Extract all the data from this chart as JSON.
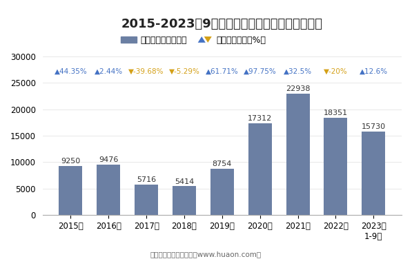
{
  "title": "2015-2023年9月大连商品交易所豆油期货成交量",
  "categories": [
    "2015年",
    "2016年",
    "2017年",
    "2018年",
    "2019年",
    "2020年",
    "2021年",
    "2022年",
    "2023年\n1-9月"
  ],
  "values": [
    9250,
    9476,
    5716,
    5414,
    8754,
    17312,
    22938,
    18351,
    15730
  ],
  "bar_color": "#6b7fa3",
  "growth_labels": [
    "▲44.35%",
    "▲2.44%",
    "▼-39.68%",
    "▼-5.29%",
    "▲61.71%",
    "▲97.75%",
    "▲32.5%",
    "▼-20%",
    "▲12.6%"
  ],
  "growth_up": [
    true,
    true,
    false,
    false,
    true,
    true,
    true,
    false,
    true
  ],
  "up_color": "#4472c4",
  "down_color": "#d4a017",
  "ylim": [
    0,
    30000
  ],
  "yticks": [
    0,
    5000,
    10000,
    15000,
    20000,
    25000,
    30000
  ],
  "legend_bar_label": "期货成交量（万手）",
  "legend_line_label": "累计同比增长（%）",
  "footer": "制图：华经产业研究院（www.huaon.com）",
  "background_color": "#ffffff",
  "title_fontsize": 13,
  "tick_fontsize": 8.5,
  "annotation_fontsize": 8,
  "growth_fontsize": 7.5
}
